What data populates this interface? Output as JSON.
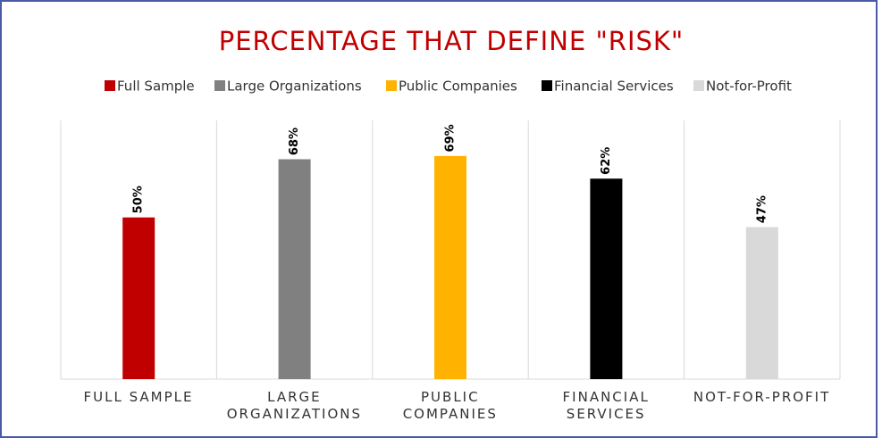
{
  "chart_data": {
    "type": "bar",
    "title": "PERCENTAGE THAT DEFINE \"RISK\"",
    "categories": [
      "FULL SAMPLE",
      "LARGE\nORGANIZATIONS",
      "PUBLIC\nCOMPANIES",
      "FINANCIAL\nSERVICES",
      "NOT-FOR-PROFIT"
    ],
    "values": [
      50,
      68,
      69,
      62,
      47
    ],
    "value_labels": [
      "50%",
      "68%",
      "69%",
      "62%",
      "47%"
    ],
    "colors": [
      "#c00000",
      "#808080",
      "#ffb300",
      "#000000",
      "#d9d9d9"
    ],
    "legend": [
      "Full Sample",
      "Large Organizations",
      "Public Companies",
      "Financial Services",
      "Not-for-Profit"
    ],
    "ylim": [
      0,
      80
    ]
  }
}
